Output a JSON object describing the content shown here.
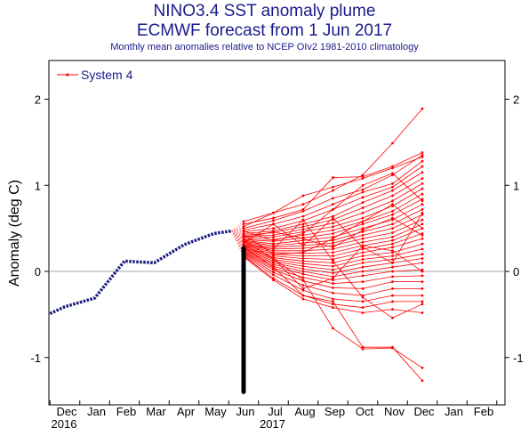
{
  "chart_data": {
    "type": "line",
    "title": "NINO3.4 SST anomaly plume",
    "subtitle": "ECMWF forecast from 1 Jun 2017",
    "caption": "Monthly mean anomalies relative to NCEP OIv2 1981-2010 climatology",
    "ylabel": "Anomaly (deg C)",
    "ylim": [
      -1.55,
      2.45
    ],
    "yticks": [
      -1,
      0,
      1,
      2
    ],
    "yticklabels": [
      "-1",
      "0",
      "1",
      "2"
    ],
    "x_categories": [
      "Dec",
      "Jan",
      "Feb",
      "Mar",
      "Apr",
      "May",
      "Jun",
      "Jul",
      "Aug",
      "Sep",
      "Oct",
      "Nov",
      "Dec",
      "Jan",
      "Feb"
    ],
    "year_labels": [
      {
        "label": "2016",
        "at_category": 0
      },
      {
        "label": "2017",
        "at_category": 7
      }
    ],
    "legend": {
      "label": "System 4",
      "placement": "top-left"
    },
    "colors": {
      "observed": "#1a1a80",
      "forecast": "#ff0000",
      "forecast_light": "#ff8080",
      "bar": "#000000",
      "zero_line": "#aaaaaa",
      "title": "#1a1a8c"
    },
    "observed": {
      "x": [
        -0.5,
        0,
        1,
        2,
        3,
        4,
        5,
        5.6
      ],
      "y": [
        -0.49,
        -0.41,
        -0.31,
        0.12,
        0.1,
        0.31,
        0.44,
        0.47
      ]
    },
    "initial_spread_bar": {
      "x": 6,
      "y_min": -1.4,
      "y_max": 0.27
    },
    "forecast_months_x": [
      6,
      7,
      8,
      9,
      10,
      11,
      12
    ],
    "forecast_start_x": 5.6,
    "forecast_start_y": 0.47,
    "members": [
      [
        0.58,
        0.68,
        0.78,
        0.94,
        1.12,
        1.49,
        1.89
      ],
      [
        0.55,
        0.62,
        0.72,
        1.09,
        1.1,
        1.22,
        1.38
      ],
      [
        0.5,
        0.59,
        0.7,
        0.85,
        0.95,
        1.12,
        1.35
      ],
      [
        0.48,
        0.55,
        0.64,
        0.78,
        0.92,
        1.02,
        1.28
      ],
      [
        0.46,
        0.5,
        0.59,
        0.72,
        0.86,
        0.98,
        1.22
      ],
      [
        0.44,
        0.47,
        0.55,
        0.64,
        0.8,
        0.94,
        1.15
      ],
      [
        0.42,
        0.45,
        0.52,
        0.6,
        0.74,
        0.88,
        1.08
      ],
      [
        0.41,
        0.42,
        0.49,
        0.56,
        0.68,
        0.82,
        1.02
      ],
      [
        0.4,
        0.4,
        0.46,
        0.52,
        0.62,
        0.76,
        0.96
      ],
      [
        0.38,
        0.37,
        0.42,
        0.48,
        0.58,
        0.7,
        0.9
      ],
      [
        0.37,
        0.35,
        0.39,
        0.44,
        0.55,
        0.66,
        0.84
      ],
      [
        0.36,
        0.32,
        0.36,
        0.4,
        0.5,
        0.6,
        0.78
      ],
      [
        0.35,
        0.3,
        0.33,
        0.36,
        0.46,
        0.55,
        0.72
      ],
      [
        0.34,
        0.28,
        0.3,
        0.33,
        0.42,
        0.5,
        0.66
      ],
      [
        0.33,
        0.26,
        0.27,
        0.3,
        0.38,
        0.45,
        0.6
      ],
      [
        0.32,
        0.24,
        0.24,
        0.26,
        0.34,
        0.4,
        0.55
      ],
      [
        0.31,
        0.22,
        0.21,
        0.22,
        0.3,
        0.36,
        0.5
      ],
      [
        0.3,
        0.2,
        0.18,
        0.18,
        0.26,
        0.32,
        0.44
      ],
      [
        0.29,
        0.18,
        0.15,
        0.14,
        0.22,
        0.28,
        0.38
      ],
      [
        0.28,
        0.16,
        0.12,
        0.1,
        0.18,
        0.22,
        0.32
      ],
      [
        0.27,
        0.14,
        0.09,
        0.06,
        0.14,
        0.18,
        0.26
      ],
      [
        0.26,
        0.12,
        0.06,
        0.02,
        0.1,
        0.14,
        0.2
      ],
      [
        0.25,
        0.1,
        0.03,
        -0.02,
        0.05,
        0.1,
        0.15
      ],
      [
        0.24,
        0.08,
        0.0,
        -0.06,
        0.0,
        0.05,
        0.1
      ],
      [
        0.23,
        0.06,
        -0.03,
        -0.1,
        -0.05,
        0.0,
        0.02
      ],
      [
        0.22,
        0.04,
        -0.07,
        -0.14,
        -0.12,
        -0.06,
        -0.05
      ],
      [
        0.21,
        0.02,
        -0.11,
        -0.19,
        -0.2,
        -0.12,
        -0.12
      ],
      [
        0.2,
        -0.01,
        -0.16,
        -0.25,
        -0.28,
        -0.2,
        -0.2
      ],
      [
        0.19,
        -0.04,
        -0.22,
        -0.32,
        -0.35,
        -0.28,
        -0.28
      ],
      [
        0.18,
        -0.08,
        -0.28,
        -0.38,
        -0.42,
        -0.35,
        -0.35
      ],
      [
        0.17,
        -0.1,
        -0.32,
        -0.42,
        -0.48,
        -0.44,
        -0.48
      ],
      [
        0.3,
        0.15,
        -0.1,
        -0.66,
        -0.9,
        -0.89,
        -1.12
      ],
      [
        0.28,
        0.05,
        -0.28,
        -0.35,
        -0.88,
        -0.88,
        -1.27
      ],
      [
        0.52,
        0.68,
        0.88,
        0.98,
        1.08,
        1.2,
        1.33
      ],
      [
        0.47,
        0.36,
        0.44,
        0.72,
        1.0,
        1.14,
        0.82
      ],
      [
        0.43,
        0.2,
        0.22,
        0.38,
        0.58,
        0.78,
        0.5
      ],
      [
        0.39,
        0.46,
        0.38,
        0.28,
        0.48,
        0.62,
        0.42
      ],
      [
        0.36,
        0.15,
        -0.2,
        -0.08,
        0.3,
        0.24,
        0.0
      ],
      [
        0.33,
        0.55,
        0.3,
        0.62,
        0.28,
        0.1,
        0.68
      ],
      [
        0.31,
        0.26,
        0.6,
        0.12,
        -0.3,
        -0.54,
        -0.38
      ]
    ],
    "grid": false
  }
}
